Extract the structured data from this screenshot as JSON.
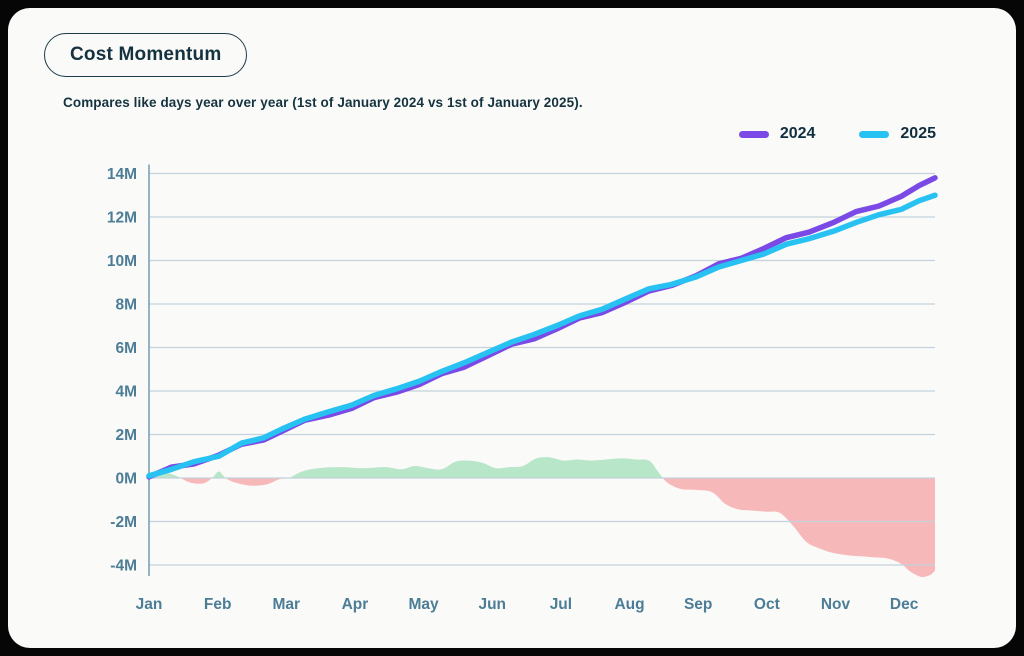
{
  "header": {
    "title": "Cost Momentum",
    "subtitle": "Compares like days year over year (1st of January 2024 vs 1st of January 2025)."
  },
  "legend": [
    {
      "label": "2024",
      "color": "#7a49e6"
    },
    {
      "label": "2025",
      "color": "#27c2f2"
    }
  ],
  "colors": {
    "page_background": "#060606",
    "card_background": "#fafaf8",
    "title_text": "#14323f",
    "tick_text": "#4c7d97",
    "gridline": "#c3d2dc",
    "axis_line": "#7ba2b8",
    "series_2024": "#7a49e6",
    "series_2025": "#27c2f2",
    "diff_positive_fill": "#b7e6c8",
    "diff_negative_fill": "#f7b8ba"
  },
  "chart_data": {
    "type": "line",
    "title": "Cost Momentum",
    "subtitle": "Compares like days year over year (1st of January 2024 vs 1st of January 2025).",
    "x_unit": "day of year (Jan 1 = 0, ends mid-December)",
    "x_domain": [
      0,
      349
    ],
    "grid": true,
    "legend_position": "top-right",
    "y_tick_labels": [
      "14M",
      "12M",
      "10M",
      "8M",
      "6M",
      "4M",
      "2M",
      "0M",
      "-2M",
      "-4M"
    ],
    "y_tick_values": [
      14,
      12,
      10,
      8,
      6,
      4,
      2,
      0,
      -2,
      -4
    ],
    "ylim": [
      -4.8,
      14.6
    ],
    "months": [
      "Jan",
      "Feb",
      "Mar",
      "Apr",
      "May",
      "Jun",
      "Jul",
      "Aug",
      "Sep",
      "Oct",
      "Nov",
      "Dec"
    ],
    "series": [
      {
        "name": "2024",
        "color": "#7a49e6",
        "unit": "M (cumulative cost)",
        "x": [
          0,
          10,
          20,
          31,
          41,
          51,
          59,
          69,
          80,
          90,
          100,
          110,
          120,
          130,
          140,
          151,
          161,
          171,
          181,
          191,
          201,
          212,
          222,
          232,
          243,
          253,
          263,
          273,
          283,
          293,
          304,
          314,
          324,
          334,
          342,
          349
        ],
        "values": [
          0.05,
          0.5,
          0.65,
          1.05,
          1.55,
          1.75,
          2.15,
          2.65,
          2.9,
          3.2,
          3.7,
          3.95,
          4.3,
          4.8,
          5.1,
          5.65,
          6.15,
          6.4,
          6.85,
          7.35,
          7.6,
          8.1,
          8.6,
          8.85,
          9.3,
          9.85,
          10.1,
          10.55,
          11.05,
          11.3,
          11.75,
          12.25,
          12.5,
          12.95,
          13.45,
          13.8
        ]
      },
      {
        "name": "2025",
        "color": "#27c2f2",
        "unit": "M (cumulative cost)",
        "x": [
          0,
          10,
          20,
          31,
          41,
          51,
          59,
          69,
          80,
          90,
          100,
          110,
          120,
          130,
          140,
          151,
          161,
          171,
          181,
          191,
          201,
          212,
          222,
          232,
          243,
          253,
          263,
          273,
          283,
          293,
          304,
          314,
          324,
          334,
          342,
          349
        ],
        "values": [
          0.1,
          0.4,
          0.75,
          1.0,
          1.6,
          1.85,
          2.25,
          2.7,
          3.05,
          3.35,
          3.8,
          4.1,
          4.45,
          4.9,
          5.3,
          5.8,
          6.25,
          6.6,
          7.0,
          7.45,
          7.75,
          8.25,
          8.7,
          8.9,
          9.25,
          9.7,
          10.0,
          10.3,
          10.75,
          11.0,
          11.35,
          11.75,
          12.1,
          12.35,
          12.75,
          13.0
        ]
      }
    ],
    "difference_area": {
      "name": "year-over-year difference",
      "unit": "M",
      "positive_color": "#b7e6c8",
      "negative_color": "#f7b8ba",
      "x": [
        0,
        6,
        12,
        18,
        24,
        28,
        31,
        34,
        38,
        45,
        52,
        58,
        62,
        68,
        75,
        85,
        95,
        105,
        112,
        118,
        124,
        130,
        136,
        142,
        148,
        154,
        160,
        166,
        172,
        178,
        184,
        190,
        196,
        203,
        210,
        216,
        222,
        226,
        230,
        236,
        243,
        250,
        256,
        262,
        268,
        274,
        280,
        286,
        292,
        298,
        304,
        310,
        316,
        322,
        328,
        334,
        338,
        343,
        347,
        349
      ],
      "values": [
        0,
        0.25,
        0.1,
        -0.2,
        -0.25,
        0,
        0.3,
        0,
        -0.2,
        -0.35,
        -0.3,
        -0.05,
        0,
        0.3,
        0.45,
        0.5,
        0.45,
        0.5,
        0.4,
        0.55,
        0.45,
        0.4,
        0.75,
        0.8,
        0.7,
        0.45,
        0.5,
        0.55,
        0.9,
        0.95,
        0.8,
        0.85,
        0.8,
        0.85,
        0.9,
        0.85,
        0.8,
        0.3,
        -0.2,
        -0.5,
        -0.55,
        -0.65,
        -1.2,
        -1.45,
        -1.5,
        -1.55,
        -1.6,
        -2.2,
        -2.95,
        -3.25,
        -3.45,
        -3.55,
        -3.6,
        -3.65,
        -3.7,
        -3.95,
        -4.3,
        -4.55,
        -4.45,
        -4.25
      ]
    }
  }
}
